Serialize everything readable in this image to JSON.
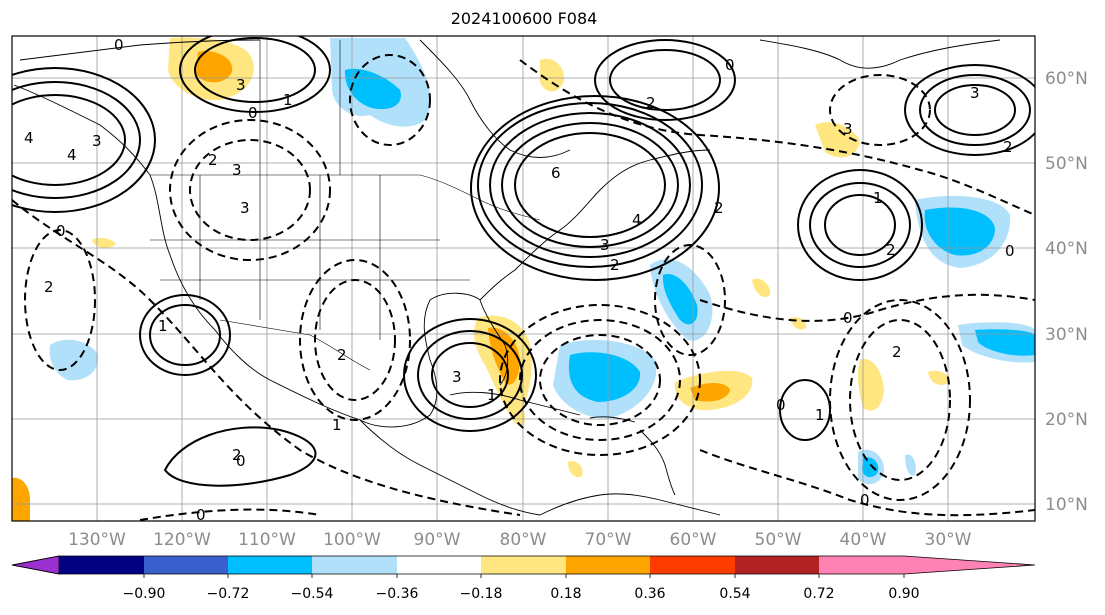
{
  "title": "2024100600 F084",
  "map": {
    "lat_labels": [
      "60°N",
      "50°N",
      "40°N",
      "30°N",
      "20°N",
      "10°N"
    ],
    "lon_labels": [
      "130°W",
      "120°W",
      "110°W",
      "100°W",
      "90°W",
      "80°W",
      "70°W",
      "60°W",
      "50°W",
      "40°W",
      "30°W"
    ],
    "contour_labels": [
      "0",
      "3",
      "3",
      "0",
      "1",
      "2",
      "0",
      "2",
      "3",
      "4",
      "4",
      "3",
      "6",
      "3",
      "4",
      "2",
      "0",
      "2",
      "3",
      "1",
      "2",
      "1",
      "2",
      "2",
      "0",
      "0",
      "3",
      "2",
      "3",
      "1",
      "1",
      "0",
      "1",
      "2",
      "2",
      "0",
      "0",
      "0"
    ]
  },
  "colorbar": {
    "ticks": [
      "−0.90",
      "−0.72",
      "−0.54",
      "−0.36",
      "−0.18",
      "0.18",
      "0.36",
      "0.54",
      "0.72",
      "0.90"
    ],
    "colors": [
      "#9b30d0",
      "#000080",
      "#3a5fcd",
      "#00bfff",
      "#b0e0fa",
      "#ffffff",
      "#ffe680",
      "#ffa500",
      "#ff3c00",
      "#b22222",
      "#ff82b4"
    ]
  }
}
